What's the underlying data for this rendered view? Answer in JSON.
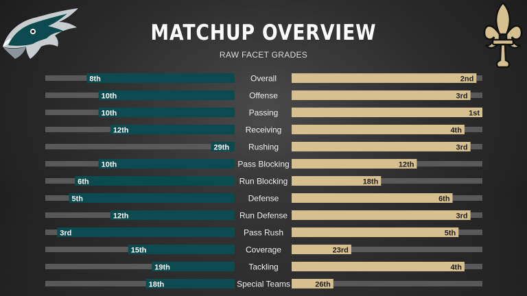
{
  "header": {
    "title": "MATCHUP OVERVIEW",
    "subtitle": "RAW FACET GRADES"
  },
  "logos": {
    "left": "eagle-head-logo",
    "right": "fleur-de-lis-logo"
  },
  "colors": {
    "left_bar": "#0b4a4f",
    "right_bar": "#d6c08f",
    "track": "#595959",
    "right_text": "#1e1e1e",
    "left_text": "#ffffff"
  },
  "chart_data": {
    "type": "bar",
    "title": "MATCHUP OVERVIEW",
    "subtitle": "RAW FACET GRADES",
    "categories": [
      "Overall",
      "Offense",
      "Passing",
      "Receiving",
      "Rushing",
      "Pass Blocking",
      "Run Blocking",
      "Defense",
      "Run Defense",
      "Pass Rush",
      "Coverage",
      "Tackling",
      "Special Teams"
    ],
    "series": [
      {
        "values": [
          8,
          10,
          10,
          12,
          29,
          10,
          6,
          5,
          12,
          3,
          15,
          19,
          18
        ],
        "labels": [
          "8th",
          "10th",
          "10th",
          "12th",
          "29th",
          "10th",
          "6th",
          "5th",
          "12th",
          "3rd",
          "15th",
          "19th",
          "18th"
        ]
      },
      {
        "values": [
          2,
          3,
          1,
          4,
          3,
          12,
          18,
          6,
          3,
          5,
          23,
          4,
          26
        ],
        "labels": [
          "2nd",
          "3rd",
          "1st",
          "4th",
          "3rd",
          "12th",
          "18th",
          "6th",
          "3rd",
          "5th",
          "23rd",
          "4th",
          "26th"
        ]
      }
    ],
    "rank_range": [
      1,
      32
    ]
  }
}
